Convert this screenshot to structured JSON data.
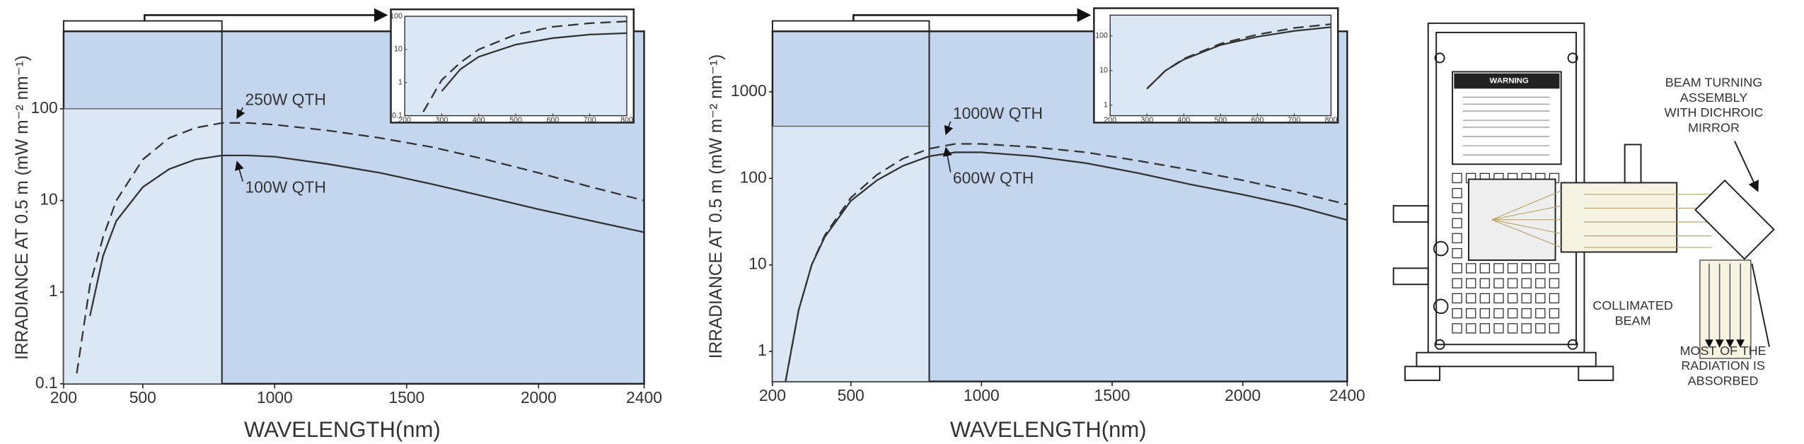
{
  "chart_data": [
    {
      "type": "line",
      "ylog": true,
      "x_label": "WAVELENGTH(nm)",
      "y_label": "IRRADIANCE AT 0.5 m (mW m⁻² nm⁻¹)",
      "x": [
        250,
        300,
        350,
        400,
        500,
        600,
        700,
        800,
        900,
        1000,
        1200,
        1400,
        1600,
        1800,
        2000,
        2200,
        2400
      ],
      "series": [
        {
          "name": "250W QTH",
          "color": "#333333",
          "line_style": "dashed",
          "values": [
            0.13,
            1.2,
            4,
            10,
            28,
            48,
            62,
            70,
            70,
            67,
            58,
            48,
            38,
            28,
            20,
            14,
            10
          ]
        },
        {
          "name": "100W QTH",
          "color": "#333333",
          "line_style": "solid",
          "values": [
            null,
            0.55,
            2.5,
            6,
            14,
            22,
            28,
            31,
            31,
            30,
            25,
            20,
            15,
            11,
            8,
            6,
            4.5
          ]
        }
      ],
      "xlim": [
        200,
        2400
      ],
      "xticks": [
        200,
        500,
        1000,
        1500,
        2000,
        2400
      ],
      "ylim": [
        0.1,
        700
      ],
      "yticks": [
        0.1,
        1,
        10,
        100
      ],
      "inset": {
        "xlim": [
          200,
          800
        ],
        "xticks": [
          200,
          300,
          400,
          500,
          600,
          700,
          800
        ],
        "ylim": [
          0.1,
          100
        ],
        "yticks": [
          0.1,
          1,
          10,
          100
        ]
      }
    },
    {
      "type": "line",
      "ylog": true,
      "x_label": "WAVELENGTH(nm)",
      "y_label": "IRRADIANCE AT 0.5 m (mW m⁻² nm⁻¹)",
      "x": [
        250,
        300,
        350,
        400,
        500,
        600,
        700,
        800,
        900,
        1000,
        1200,
        1400,
        1600,
        1800,
        2000,
        2200,
        2400
      ],
      "series": [
        {
          "name": "1000W QTH",
          "color": "#333333",
          "line_style": "dashed",
          "values": [
            0.45,
            3,
            10,
            22,
            60,
            110,
            170,
            220,
            250,
            250,
            230,
            200,
            160,
            125,
            95,
            70,
            50
          ]
        },
        {
          "name": "600W QTH",
          "color": "#333333",
          "line_style": "solid",
          "values": [
            0.45,
            3,
            10,
            21,
            55,
            95,
            140,
            180,
            200,
            200,
            180,
            150,
            115,
            85,
            65,
            48,
            33
          ]
        }
      ],
      "xlim": [
        200,
        2400
      ],
      "xticks": [
        200,
        500,
        1000,
        1500,
        2000,
        2400
      ],
      "ylim": [
        0.45,
        5000
      ],
      "yticks": [
        1,
        10,
        100,
        1000
      ],
      "inset": {
        "xlim": [
          200,
          800
        ],
        "xticks": [
          200,
          300,
          400,
          500,
          600,
          700,
          800
        ],
        "ylim": [
          0.5,
          400
        ],
        "yticks": [
          1,
          10,
          100
        ]
      }
    }
  ],
  "diagram": {
    "warning": "WARNING",
    "mirror_label": [
      "BEAM TURNING",
      "ASSEMBLY",
      "WITH DICHROIC",
      "MIRROR"
    ],
    "beam_label": [
      "COLLIMATED",
      "BEAM"
    ],
    "absorbed_label": [
      "MOST OF THE",
      "RADIATION IS",
      "ABSORBED"
    ]
  }
}
